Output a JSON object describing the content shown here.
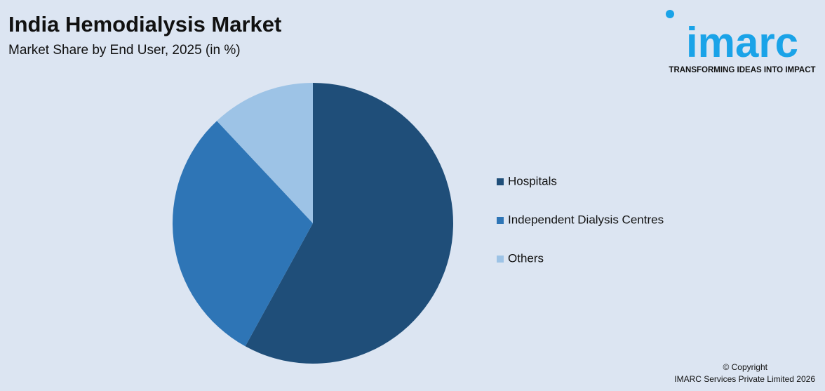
{
  "chart_data": {
    "type": "pie",
    "title": "India Hemodialysis Market",
    "subtitle": "Market Share by End User, 2025 (in %)",
    "categories": [
      "Hospitals",
      "Independent Dialysis Centres",
      "Others"
    ],
    "values": [
      58,
      30,
      12
    ],
    "colors": [
      "#1f4e79",
      "#2e75b6",
      "#9dc3e6"
    ],
    "legend": "right"
  },
  "logo": {
    "name": "imarc",
    "tagline": "TRANSFORMING IDEAS INTO IMPACT"
  },
  "footer": {
    "line1": "© Copyright",
    "line2": "IMARC Services Private Limited 2026"
  }
}
